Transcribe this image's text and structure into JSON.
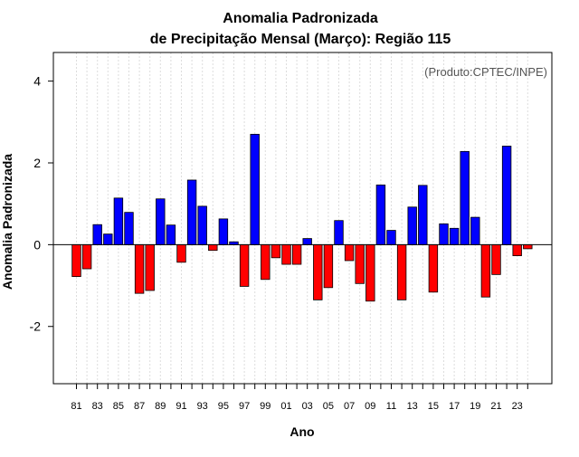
{
  "chart_data": {
    "type": "bar",
    "title": "Anomalia Padronizada",
    "subtitle": "de Precipitação Mensal (Março): Região 115",
    "xlabel": "Ano",
    "ylabel": "Anomalia Padronizada",
    "annotation": "(Produto:CPTEC/INPE)",
    "ylim": [
      -3.4,
      4.7
    ],
    "yticks": [
      -2,
      0,
      2,
      4
    ],
    "grid": true,
    "positive_color": "#0000ff",
    "negative_color": "#ff0000",
    "annotation_color": "#555555",
    "categories": [
      "1981",
      "1982",
      "1983",
      "1984",
      "1985",
      "1986",
      "1987",
      "1988",
      "1989",
      "1990",
      "1991",
      "1992",
      "1993",
      "1994",
      "1995",
      "1996",
      "1997",
      "1998",
      "1999",
      "2000",
      "2001",
      "2002",
      "2003",
      "2004",
      "2005",
      "2006",
      "2007",
      "2008",
      "2009",
      "2010",
      "2011",
      "2012",
      "2013",
      "2014",
      "2015",
      "2016",
      "2017",
      "2018",
      "2019",
      "2020",
      "2021",
      "2022",
      "2023",
      "2024"
    ],
    "values": [
      -0.78,
      -0.59,
      0.49,
      0.26,
      1.14,
      0.79,
      -1.19,
      -1.12,
      1.12,
      0.48,
      -0.43,
      1.58,
      0.94,
      -0.14,
      0.63,
      0.07,
      -1.02,
      2.7,
      -0.85,
      -0.32,
      -0.48,
      -0.48,
      0.15,
      -1.35,
      -1.05,
      0.59,
      -0.39,
      -0.95,
      -1.38,
      1.46,
      0.35,
      -1.35,
      0.92,
      1.45,
      -1.16,
      0.51,
      0.4,
      2.28,
      0.67,
      -1.28,
      -0.73,
      2.41,
      -0.27,
      -0.1
    ],
    "tick_labels": [
      "81",
      "83",
      "85",
      "87",
      "89",
      "91",
      "93",
      "95",
      "97",
      "99",
      "01",
      "03",
      "05",
      "07",
      "09",
      "11",
      "13",
      "15",
      "17",
      "19",
      "21",
      "23"
    ]
  }
}
